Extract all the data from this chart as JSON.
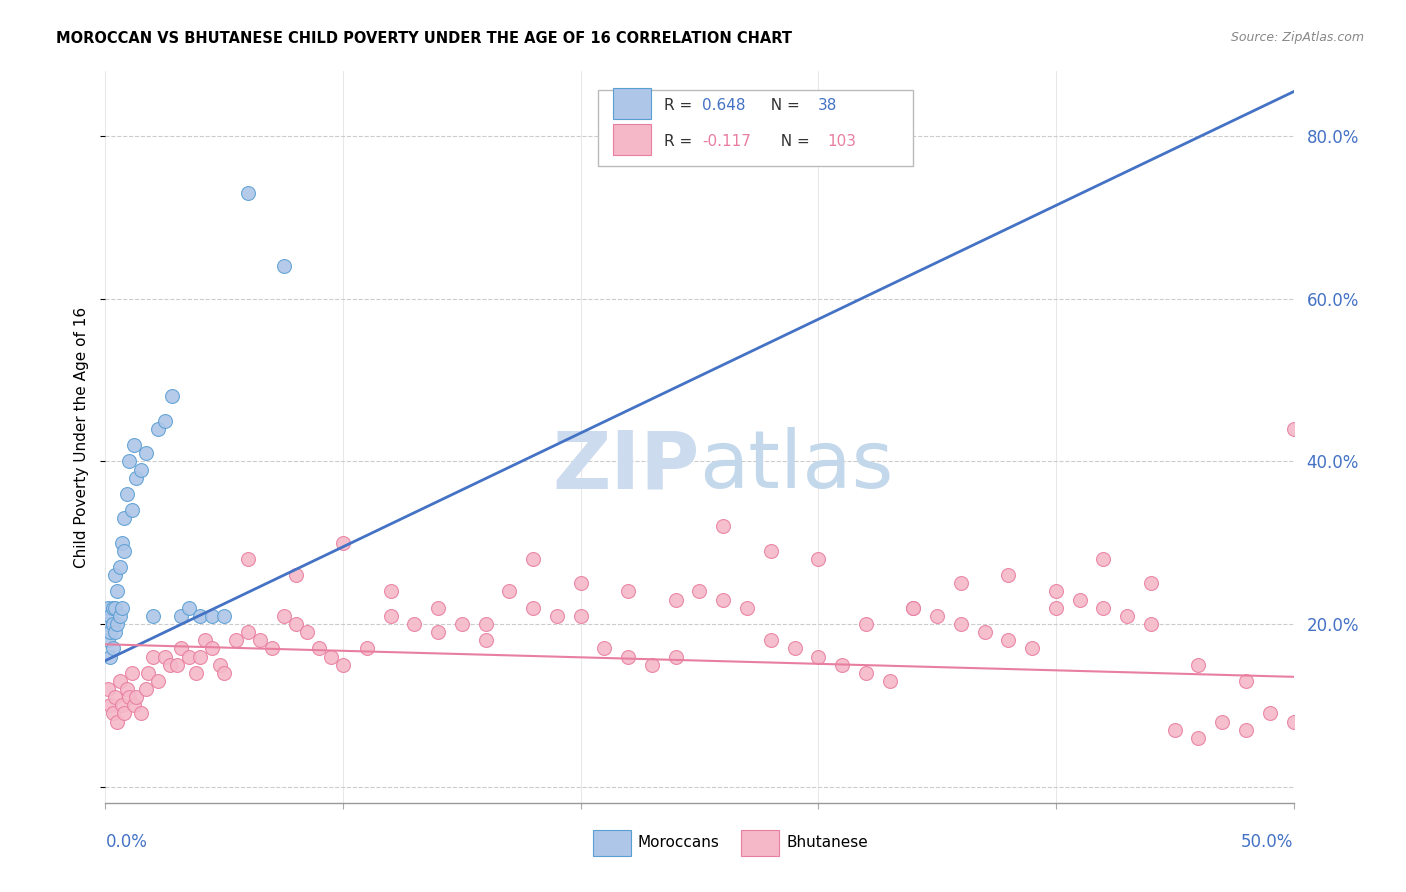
{
  "title": "MOROCCAN VS BHUTANESE CHILD POVERTY UNDER THE AGE OF 16 CORRELATION CHART",
  "source": "Source: ZipAtlas.com",
  "ylabel": "Child Poverty Under the Age of 16",
  "xlim": [
    0.0,
    0.5
  ],
  "ylim": [
    -0.02,
    0.88
  ],
  "moroccan_color": "#aec6e8",
  "moroccan_edge": "#5a9fd4",
  "bhutanese_color": "#f5b8c8",
  "bhutanese_edge": "#e87fa0",
  "moroccan_R": 0.648,
  "moroccan_N": 38,
  "bhutanese_R": -0.117,
  "bhutanese_N": 103,
  "trend_moroccan_color": "#4472c4",
  "trend_bhutanese_color": "#e87fa0",
  "watermark_zip_color": "#ccdcee",
  "watermark_atlas_color": "#c0d4e8",
  "legend_label_moroccan": "Moroccans",
  "legend_label_bhutanese": "Bhutanese",
  "moroccan_x": [
    0.001,
    0.001,
    0.001,
    0.002,
    0.002,
    0.002,
    0.003,
    0.003,
    0.003,
    0.004,
    0.004,
    0.004,
    0.005,
    0.005,
    0.006,
    0.006,
    0.007,
    0.007,
    0.008,
    0.008,
    0.009,
    0.01,
    0.011,
    0.012,
    0.013,
    0.015,
    0.017,
    0.02,
    0.022,
    0.025,
    0.028,
    0.032,
    0.035,
    0.04,
    0.045,
    0.05,
    0.06,
    0.075
  ],
  "moroccan_y": [
    0.18,
    0.2,
    0.22,
    0.16,
    0.19,
    0.21,
    0.17,
    0.2,
    0.22,
    0.19,
    0.22,
    0.26,
    0.2,
    0.24,
    0.21,
    0.27,
    0.22,
    0.3,
    0.29,
    0.33,
    0.36,
    0.4,
    0.34,
    0.42,
    0.38,
    0.39,
    0.41,
    0.21,
    0.44,
    0.45,
    0.48,
    0.21,
    0.22,
    0.21,
    0.21,
    0.21,
    0.73,
    0.64
  ],
  "bhutanese_x": [
    0.001,
    0.002,
    0.003,
    0.004,
    0.005,
    0.006,
    0.007,
    0.008,
    0.009,
    0.01,
    0.011,
    0.012,
    0.013,
    0.015,
    0.017,
    0.018,
    0.02,
    0.022,
    0.025,
    0.027,
    0.03,
    0.032,
    0.035,
    0.038,
    0.04,
    0.042,
    0.045,
    0.048,
    0.05,
    0.055,
    0.06,
    0.065,
    0.07,
    0.075,
    0.08,
    0.085,
    0.09,
    0.095,
    0.1,
    0.11,
    0.12,
    0.13,
    0.14,
    0.15,
    0.16,
    0.17,
    0.18,
    0.19,
    0.2,
    0.21,
    0.22,
    0.23,
    0.24,
    0.25,
    0.26,
    0.27,
    0.28,
    0.29,
    0.3,
    0.31,
    0.32,
    0.33,
    0.34,
    0.35,
    0.36,
    0.37,
    0.38,
    0.39,
    0.4,
    0.41,
    0.42,
    0.43,
    0.44,
    0.45,
    0.46,
    0.47,
    0.48,
    0.49,
    0.5,
    0.06,
    0.08,
    0.1,
    0.12,
    0.14,
    0.16,
    0.18,
    0.2,
    0.22,
    0.24,
    0.26,
    0.28,
    0.3,
    0.32,
    0.34,
    0.36,
    0.38,
    0.4,
    0.42,
    0.44,
    0.46,
    0.48,
    0.5
  ],
  "bhutanese_y": [
    0.12,
    0.1,
    0.09,
    0.11,
    0.08,
    0.13,
    0.1,
    0.09,
    0.12,
    0.11,
    0.14,
    0.1,
    0.11,
    0.09,
    0.12,
    0.14,
    0.16,
    0.13,
    0.16,
    0.15,
    0.15,
    0.17,
    0.16,
    0.14,
    0.16,
    0.18,
    0.17,
    0.15,
    0.14,
    0.18,
    0.19,
    0.18,
    0.17,
    0.21,
    0.2,
    0.19,
    0.17,
    0.16,
    0.15,
    0.17,
    0.21,
    0.2,
    0.19,
    0.2,
    0.18,
    0.24,
    0.22,
    0.21,
    0.21,
    0.17,
    0.16,
    0.15,
    0.16,
    0.24,
    0.23,
    0.22,
    0.18,
    0.17,
    0.16,
    0.15,
    0.14,
    0.13,
    0.22,
    0.21,
    0.2,
    0.19,
    0.18,
    0.17,
    0.24,
    0.23,
    0.22,
    0.21,
    0.2,
    0.07,
    0.06,
    0.08,
    0.07,
    0.09,
    0.08,
    0.28,
    0.26,
    0.3,
    0.24,
    0.22,
    0.2,
    0.28,
    0.25,
    0.24,
    0.23,
    0.32,
    0.29,
    0.28,
    0.2,
    0.22,
    0.25,
    0.26,
    0.22,
    0.28,
    0.25,
    0.15,
    0.13,
    0.44
  ],
  "trend_moroccan_x0": 0.0,
  "trend_moroccan_y0": 0.155,
  "trend_moroccan_x1": 0.5,
  "trend_moroccan_y1": 0.855,
  "trend_bhutanese_x0": 0.0,
  "trend_bhutanese_y0": 0.175,
  "trend_bhutanese_x1": 0.5,
  "trend_bhutanese_y1": 0.135
}
